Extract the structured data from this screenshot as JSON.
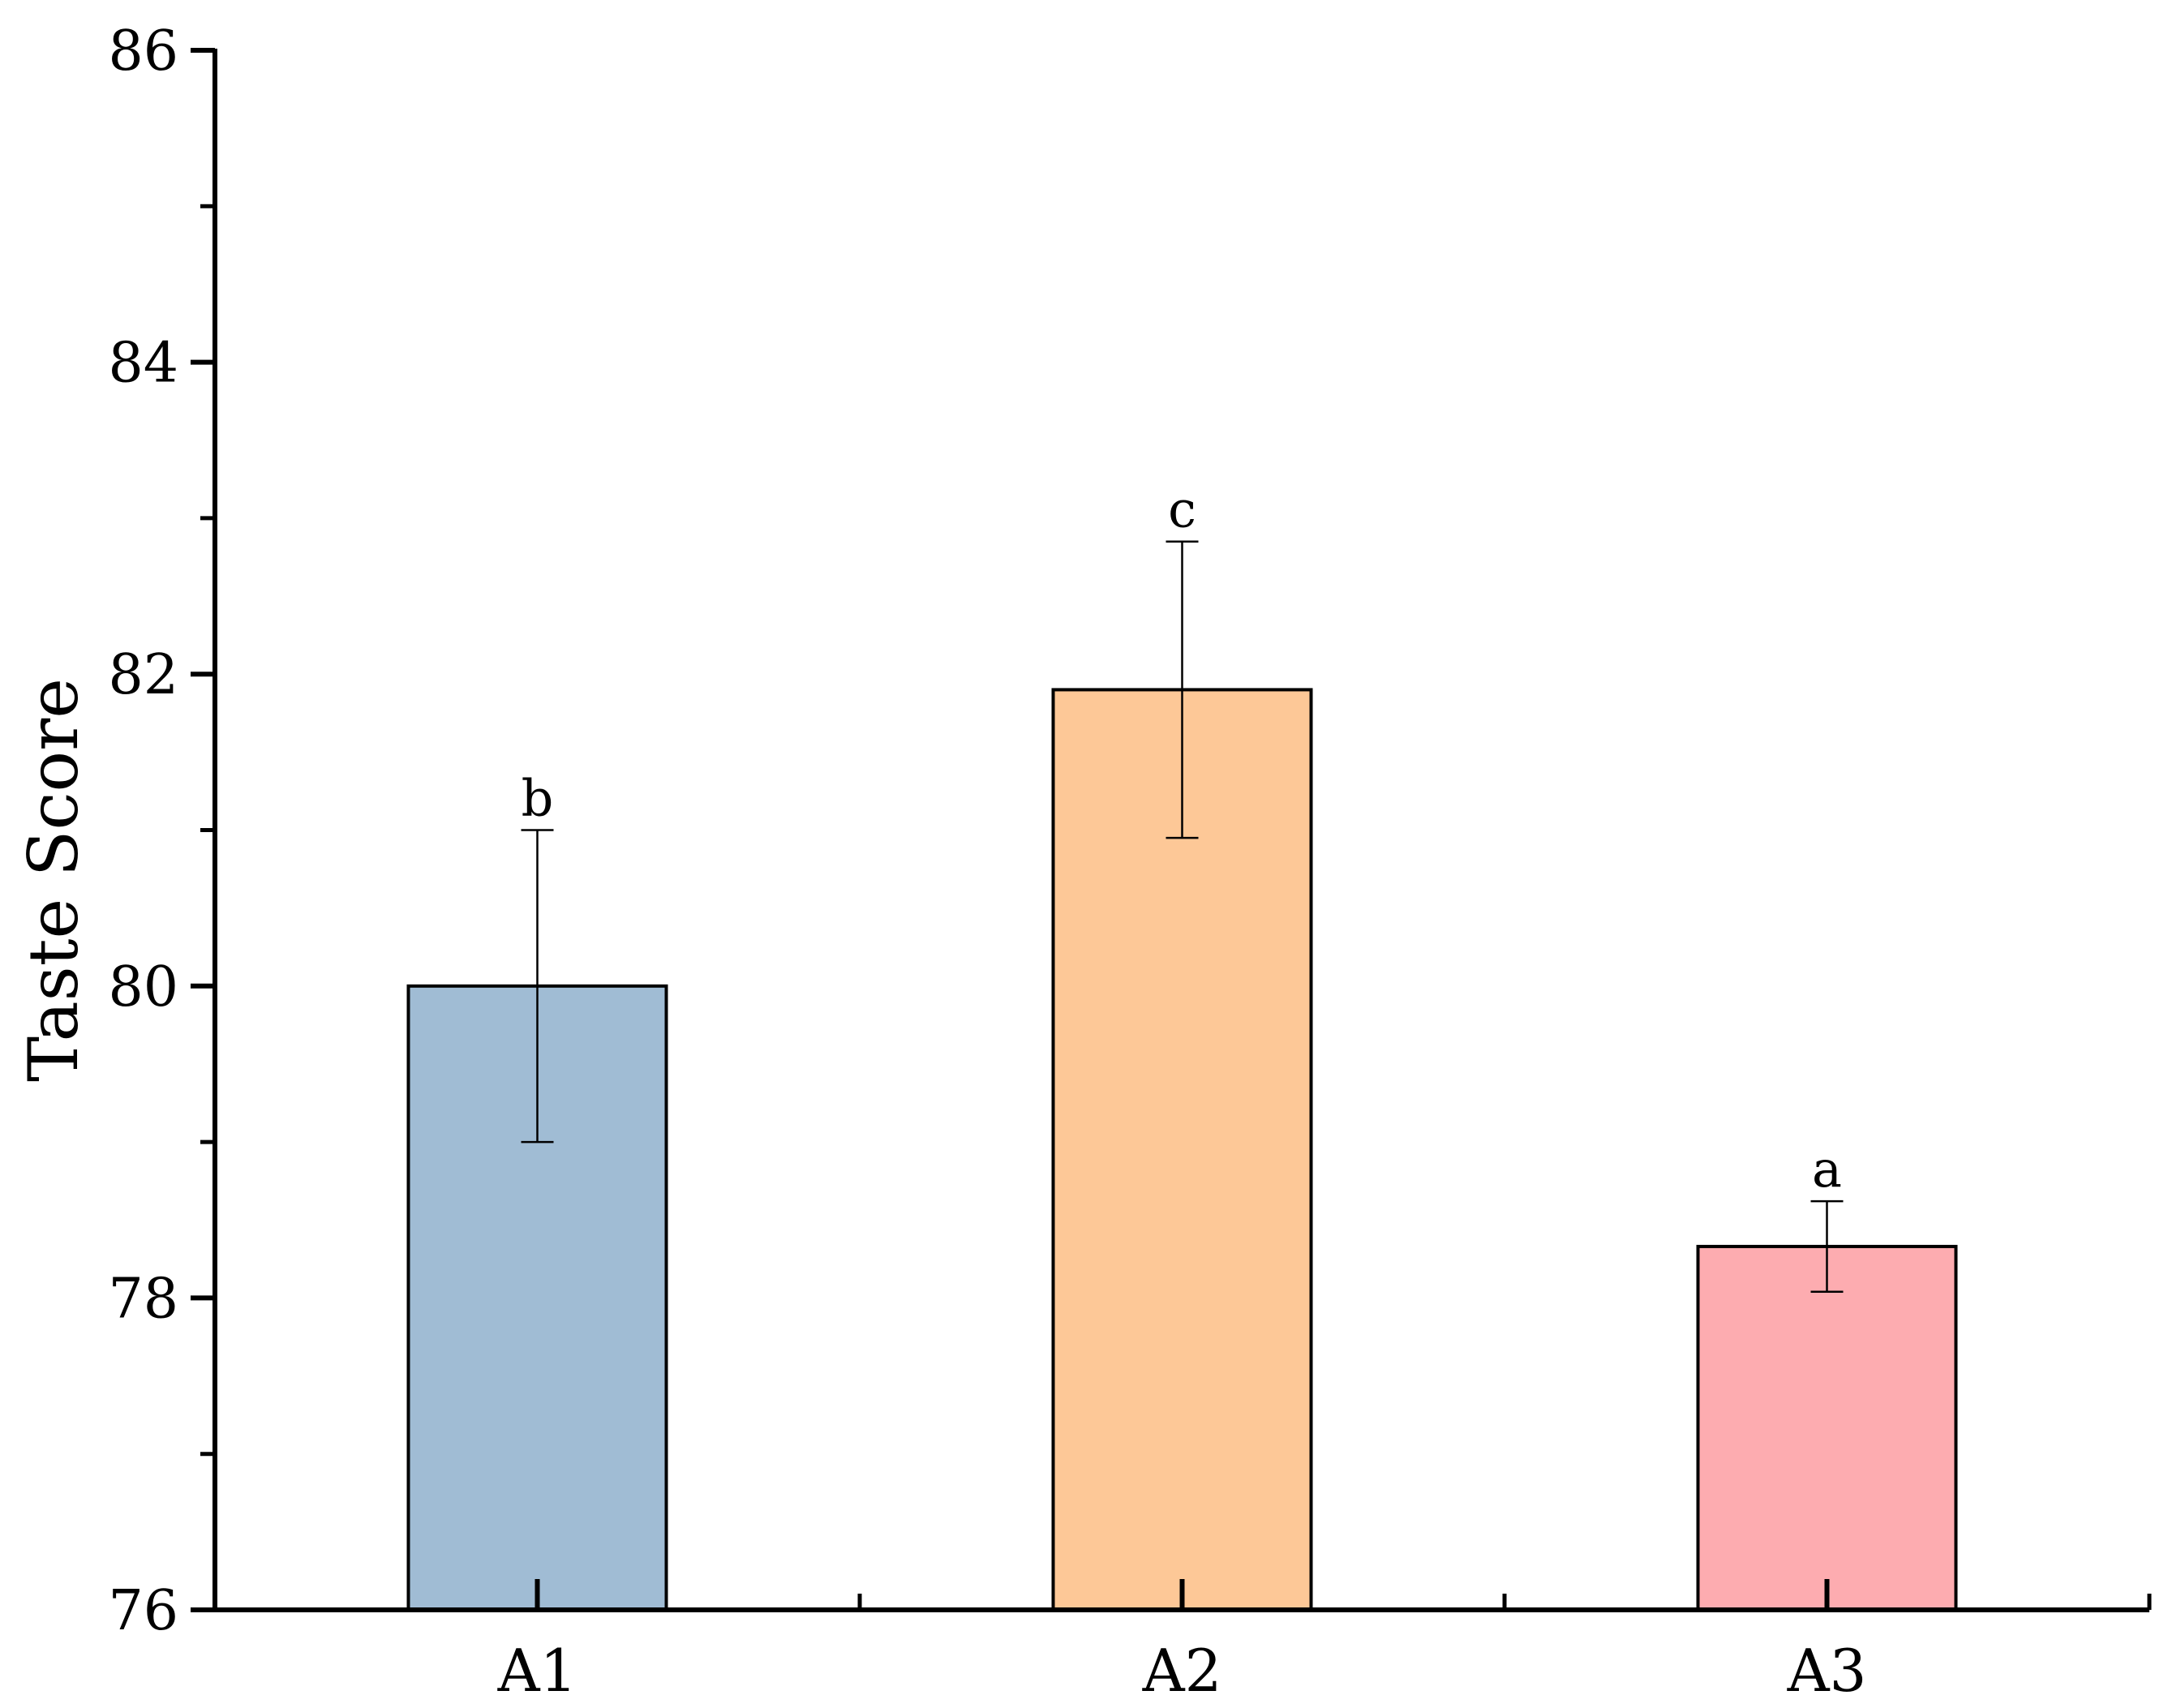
{
  "chart_data": {
    "type": "bar",
    "title": "",
    "xlabel": "",
    "ylabel": "Taste Score",
    "ylim": [
      76,
      86
    ],
    "yticks_major": [
      76,
      78,
      80,
      82,
      84,
      86
    ],
    "yticks_minor": [
      77,
      79,
      81,
      83,
      85
    ],
    "grid": false,
    "categories": [
      "A1",
      "A2",
      "A3"
    ],
    "values": [
      80.0,
      81.9,
      78.33
    ],
    "errors": [
      1.0,
      0.95,
      0.29
    ],
    "significance": [
      "b",
      "c",
      "a"
    ],
    "colors": [
      "#a0bcd4",
      "#fdc897",
      "#fdacb0"
    ]
  }
}
